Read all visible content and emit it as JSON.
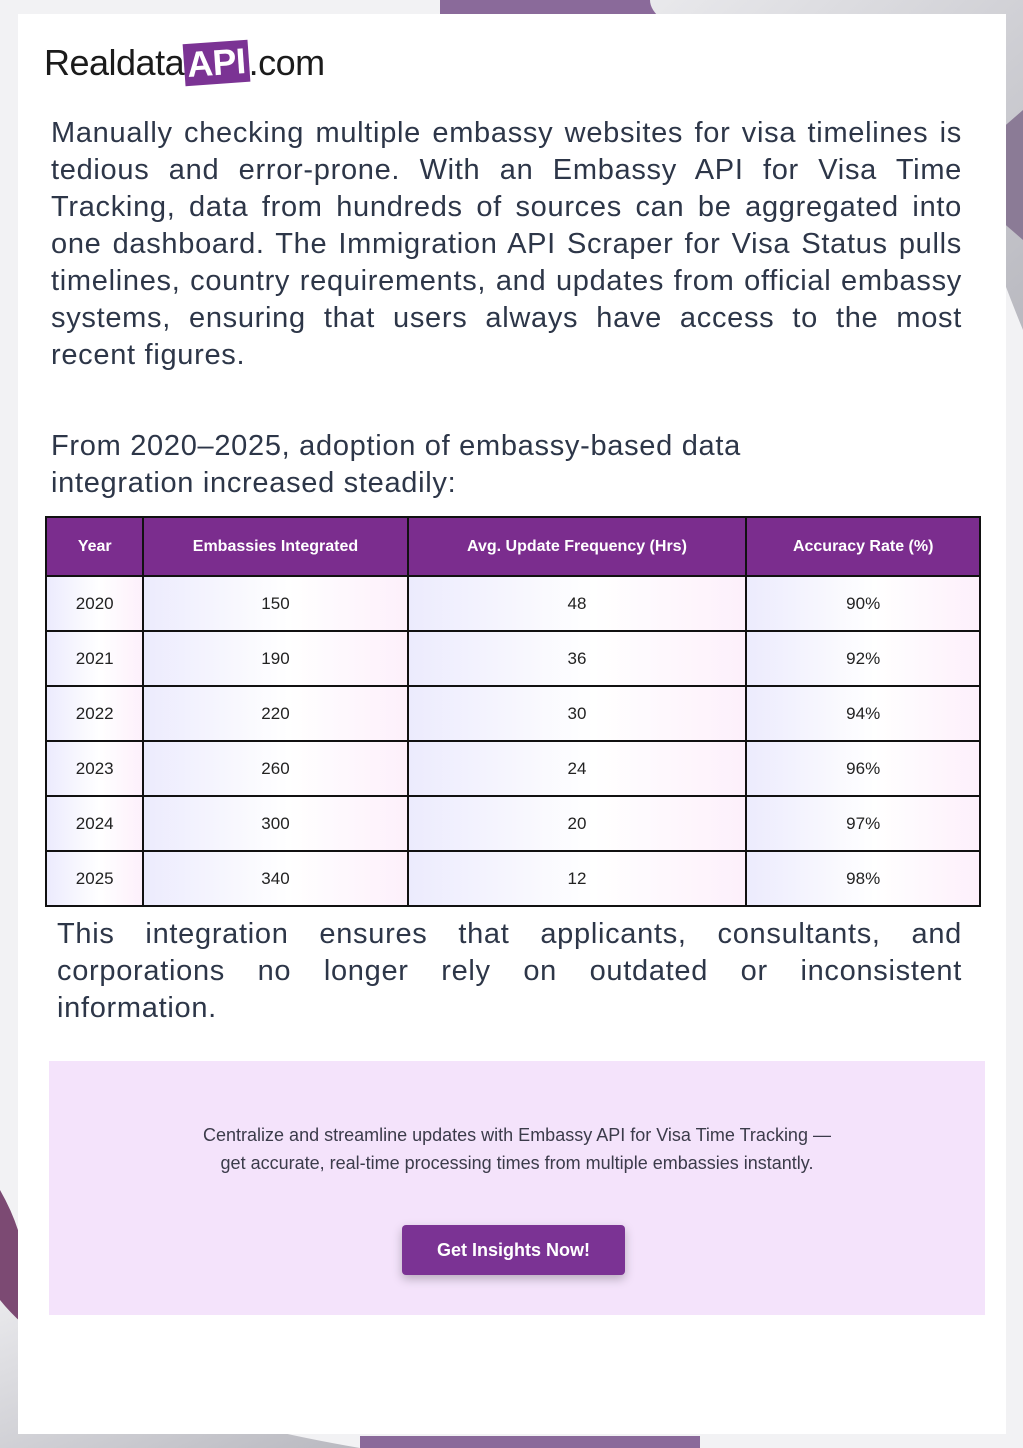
{
  "logo": {
    "prefix": "Realdata",
    "highlight": "API",
    "suffix": ".com"
  },
  "paragraphs": [
    "Manually checking multiple embassy websites for visa timelines is tedious and error-prone. With an Embassy API for Visa Time Tracking, data from hundreds of sources can be aggregated into one dashboard. The Immigration API Scraper for Visa Status pulls timelines, country requirements, and updates from official embassy systems, ensuring that users always have access to the most recent figures.",
    "From 2020–2025, adoption of embassy-based data integration increased steadily:",
    "This integration ensures that applicants, consultants, and corporations no longer rely on outdated or inconsistent information."
  ],
  "table": {
    "headers": [
      "Year",
      "Embassies Integrated",
      "Avg. Update Frequency (Hrs)",
      "Accuracy Rate (%)"
    ],
    "rows": [
      [
        "2020",
        "150",
        "48",
        "90%"
      ],
      [
        "2021",
        "190",
        "36",
        "92%"
      ],
      [
        "2022",
        "220",
        "30",
        "94%"
      ],
      [
        "2023",
        "260",
        "24",
        "96%"
      ],
      [
        "2024",
        "300",
        "20",
        "97%"
      ],
      [
        "2025",
        "340",
        "12",
        "98%"
      ]
    ]
  },
  "cta": {
    "text": "Centralize and streamline updates with Embassy API for Visa Time Tracking — get accurate, real-time processing times from multiple embassies instantly.",
    "button": "Get Insights Now!"
  }
}
